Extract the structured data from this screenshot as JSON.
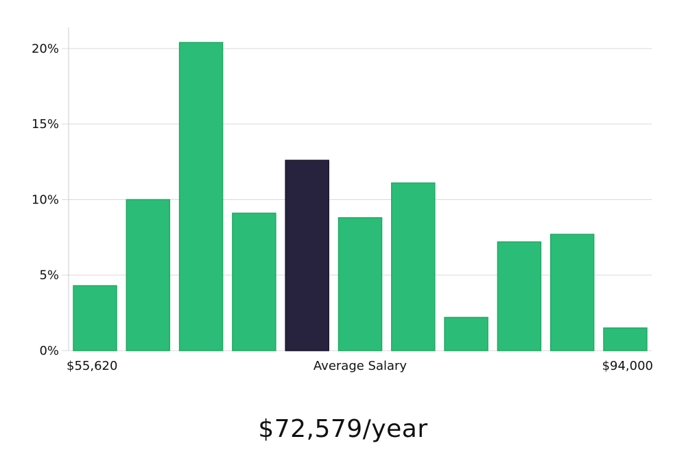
{
  "chart_data": {
    "type": "bar",
    "title": "",
    "xlabel": "Average Salary",
    "ylabel": "",
    "x_range_labels": {
      "min": "$55,620",
      "max": "$94,000"
    },
    "y_ticks": [
      0,
      5,
      10,
      15,
      20
    ],
    "y_tick_labels": [
      "0%",
      "5%",
      "10%",
      "15%",
      "20%"
    ],
    "ylim": [
      0,
      21.4
    ],
    "values": [
      4.3,
      10.0,
      20.4,
      9.1,
      12.6,
      8.8,
      11.1,
      2.2,
      7.2,
      7.7,
      1.5
    ],
    "highlight_index": 4,
    "grid": true
  },
  "summary": {
    "salary_text": "$72,579/year"
  },
  "colors": {
    "bar": "#2bbd77",
    "bar_edge": "#22a865",
    "highlight": "#27233f",
    "highlight_edge": "#16132a",
    "grid": "#d9d9d9",
    "axis": "#cccccc"
  }
}
